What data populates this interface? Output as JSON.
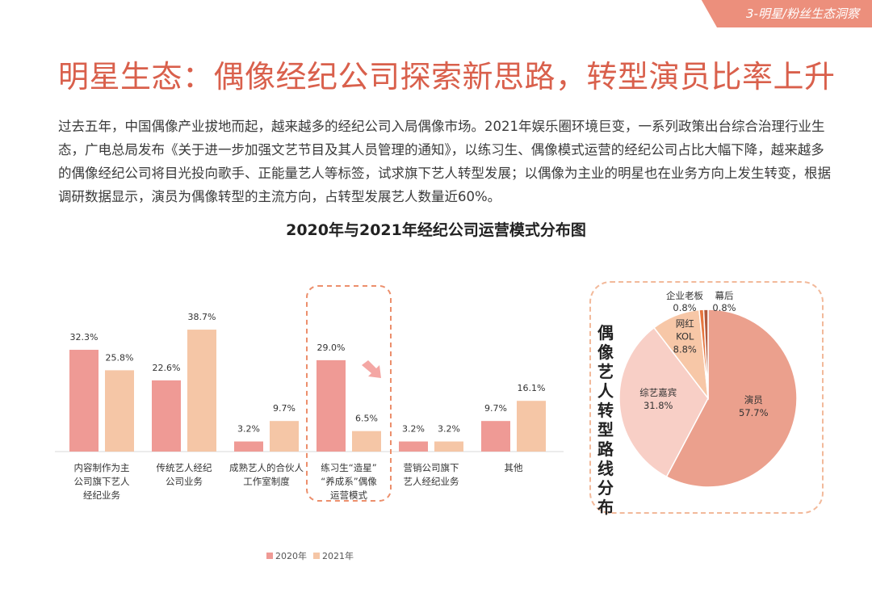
{
  "header": {
    "section_label": "3-明星/粉丝生态洞察"
  },
  "title": "明星生态：偶像经纪公司探索新思路，转型演员比率上升",
  "body_text": "过去五年，中国偶像产业拔地而起，越来越多的经纪公司入局偶像市场。2021年娱乐圈环境巨变，一系列政策出台综合治理行业生态，广电总局发布《关于进一步加强文艺节目及其人员管理的通知》，以练习生、偶像模式运营的经纪公司占比大幅下降，越来越多的偶像经纪公司将目光投向歌手、正能量艺人等标签，试求旗下艺人转型发展；以偶像为主业的明星也在业务方向上发生转变，根据调研数据显示，演员为偶像转型的主流方向，占转型发展艺人数量近60%。",
  "colors": {
    "accent": "#d9604c",
    "bar_2020": "#ef9a95",
    "bar_2021": "#f5c6a6",
    "highlight_border": "#ec8f6c",
    "arrow": "#f4a7a4"
  },
  "chart_data": [
    {
      "type": "bar",
      "title": "2020年与2021年经纪公司运营模式分布图",
      "categories": [
        [
          "内容制作为主",
          "公司旗下艺人",
          "经纪业务"
        ],
        [
          "传统艺人经纪",
          "公司业务"
        ],
        [
          "成熟艺人的合伙人",
          "工作室制度"
        ],
        [
          "练习生“造星”",
          "“养成系”偶像",
          "运营模式"
        ],
        [
          "营销公司旗下",
          "艺人经纪业务"
        ],
        [
          "其他"
        ]
      ],
      "series": [
        {
          "name": "2020年",
          "values": [
            32.3,
            22.6,
            3.2,
            29.0,
            3.2,
            9.7
          ],
          "color": "#ef9a95"
        },
        {
          "name": "2021年",
          "values": [
            25.8,
            38.7,
            9.7,
            6.5,
            3.2,
            16.1
          ],
          "color": "#f5c6a6"
        }
      ],
      "value_labels": [
        [
          "32.3%",
          "22.6%",
          "3.2%",
          "29.0%",
          "3.2%",
          "9.7%"
        ],
        [
          "25.8%",
          "38.7%",
          "9.7%",
          "6.5%",
          "3.2%",
          "16.1%"
        ]
      ],
      "highlighted_category_index": 3,
      "ylim": [
        0,
        40
      ],
      "legend_position": "bottom"
    },
    {
      "type": "pie",
      "title": "偶像艺人转型路线分布",
      "slices": [
        {
          "label": "演员",
          "value": 57.7,
          "value_label": "57.7%",
          "color": "#eba08d"
        },
        {
          "label": "综艺嘉宾",
          "value": 31.8,
          "value_label": "31.8%",
          "color": "#f8cfc6"
        },
        {
          "label": "网红\nKOL",
          "value": 8.8,
          "value_label": "8.8%",
          "color": "#f7c7a7"
        },
        {
          "label": "企业老板",
          "value": 0.8,
          "value_label": "0.8%",
          "color": "#e6763f"
        },
        {
          "label": "幕后",
          "value": 0.8,
          "value_label": "0.8%",
          "color": "#b25a3d"
        }
      ]
    }
  ]
}
